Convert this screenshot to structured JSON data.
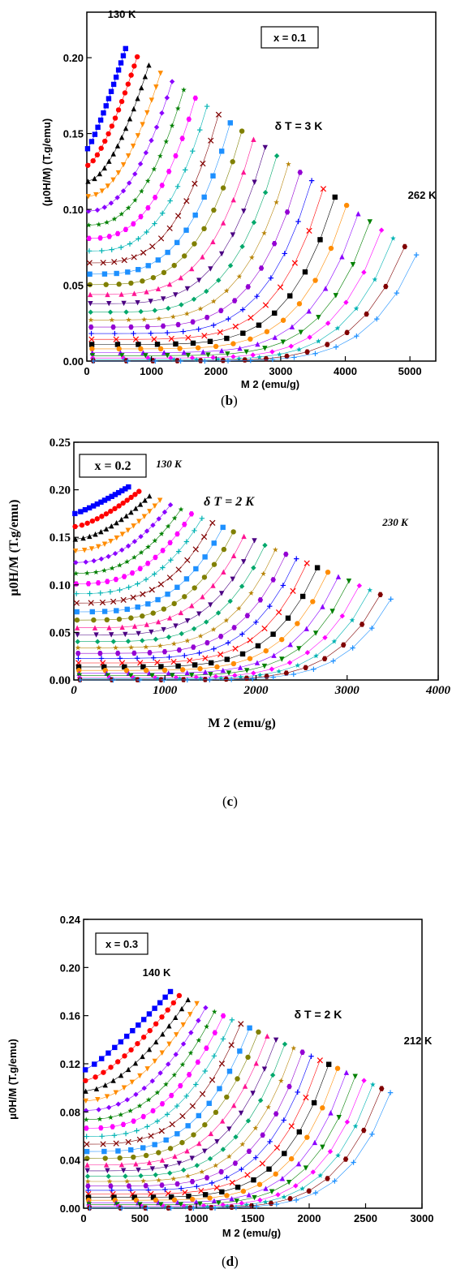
{
  "panels": [
    {
      "label_open": "(",
      "label_letter": "b",
      "label_close": ")",
      "box_text": "x = 0.1",
      "delta_text": "δ T = 3 K",
      "low_t_text": "130 K",
      "high_t_text": "262 K",
      "ylabel": "(μ0H/M)  (T.g/emu)",
      "xlabel": "M 2 (emu/g)",
      "xticks": [
        "0",
        "1000",
        "2000",
        "3000",
        "4000",
        "5000"
      ],
      "yticks": [
        "0.00",
        "0.05",
        "0.10",
        "0.15",
        "0.20"
      ],
      "xlim": [
        0,
        5400
      ],
      "ylim": [
        0,
        0.23
      ]
    },
    {
      "label_open": "(",
      "label_letter": "c",
      "label_close": ")",
      "box_text": "x = 0.2",
      "delta_text": "δ T = 2 K",
      "low_t_text": "130 K",
      "high_t_text": "230 K",
      "ylabel": "μ0H/M (T.g/emu)",
      "xlabel": "M 2 (emu/g)",
      "xticks": [
        "0",
        "1000",
        "2000",
        "3000",
        "4000"
      ],
      "yticks": [
        "0.00",
        "0.05",
        "0.10",
        "0.15",
        "0.20",
        "0.25"
      ],
      "xlim": [
        0,
        4000
      ],
      "ylim": [
        0,
        0.25
      ]
    },
    {
      "label_open": "(",
      "label_letter": "d",
      "label_close": ")",
      "box_text": "x = 0.3",
      "delta_text": "δ T = 2 K",
      "low_t_text": "140 K",
      "high_t_text": "212 K",
      "ylabel": "μ0H/M (T.g/emu)",
      "xlabel": "M 2 (emu/g)",
      "xticks": [
        "0",
        "500",
        "1000",
        "1500",
        "2000",
        "2500",
        "3000"
      ],
      "yticks": [
        "0.00",
        "0.04",
        "0.08",
        "0.12",
        "0.16",
        "0.20",
        "0.24"
      ],
      "xlim": [
        0,
        3000
      ],
      "ylim": [
        0,
        0.24
      ]
    }
  ],
  "chart_data": [
    {
      "type": "scatter",
      "title": "",
      "xlabel": "M 2 (emu/g)",
      "ylabel": "(μ0H/M)  (T.g/emu)",
      "xlim": [
        0,
        5400
      ],
      "ylim": [
        0,
        0.23
      ],
      "grid": false,
      "series": [
        {
          "name": "130 K",
          "x": [
            20,
            100,
            200,
            300,
            400,
            500,
            600
          ],
          "y": [
            0.14,
            0.165,
            0.178,
            0.187,
            0.194,
            0.2,
            0.206
          ]
        },
        {
          "name": "262 K",
          "x": [
            150,
            1500,
            3000,
            4000,
            4600,
            4900,
            5050,
            5100
          ],
          "y": [
            0.0,
            0.002,
            0.006,
            0.012,
            0.024,
            0.04,
            0.055,
            0.07
          ]
        }
      ]
    },
    {
      "type": "scatter",
      "title": "",
      "xlabel": "M 2 (emu/g)",
      "ylabel": "μ0H/M (T.g/emu)",
      "xlim": [
        0,
        4000
      ],
      "ylim": [
        0,
        0.25
      ],
      "grid": false,
      "series": [
        {
          "name": "130 K",
          "x": [
            0,
            100,
            200,
            300,
            400,
            500,
            600
          ],
          "y": [
            0.175,
            0.18,
            0.185,
            0.19,
            0.195,
            0.199,
            0.203
          ]
        },
        {
          "name": "230 K",
          "x": [
            100,
            1000,
            2000,
            2800,
            3200,
            3400,
            3480
          ],
          "y": [
            0.0,
            0.003,
            0.008,
            0.02,
            0.04,
            0.065,
            0.085
          ]
        }
      ]
    },
    {
      "type": "scatter",
      "title": "",
      "xlabel": "M 2 (emu/g)",
      "ylabel": "μ0H/M (T.g/emu)",
      "xlim": [
        0,
        3000
      ],
      "ylim": [
        0,
        0.24
      ],
      "grid": false,
      "series": [
        {
          "name": "140 K",
          "x": [
            0,
            100,
            200,
            300,
            400,
            500,
            600,
            700,
            770
          ],
          "y": [
            0.115,
            0.125,
            0.133,
            0.141,
            0.149,
            0.157,
            0.165,
            0.173,
            0.18
          ]
        },
        {
          "name": "212 K",
          "x": [
            100,
            1000,
            1800,
            2300,
            2550,
            2680,
            2720
          ],
          "y": [
            0.0,
            0.003,
            0.01,
            0.025,
            0.05,
            0.078,
            0.096
          ]
        }
      ]
    }
  ]
}
